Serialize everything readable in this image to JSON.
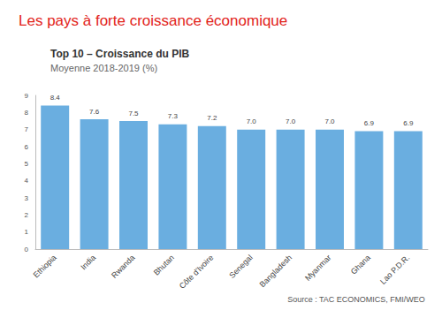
{
  "slide_title": "Les pays à forte croissance économique",
  "chart_data": {
    "type": "bar",
    "title": "Top 10 – Croissance du PIB",
    "subtitle": "Moyenne 2018-2019 (%)",
    "categories": [
      "Ethiopia",
      "India",
      "Rwanda",
      "Bhutan",
      "Côte d'Ivoire",
      "Senegal",
      "Bangladesh",
      "Myanmar",
      "Ghana",
      "Lao P.D.R."
    ],
    "values": [
      8.4,
      7.6,
      7.5,
      7.3,
      7.2,
      7.0,
      7.0,
      7.0,
      6.9,
      6.9
    ],
    "value_labels": [
      "8.4",
      "7.6",
      "7.5",
      "7.3",
      "7.2",
      "7.0",
      "7.0",
      "7.0",
      "6.9",
      "6.9"
    ],
    "data_labels": true,
    "color": "#6aaee0",
    "ylim": [
      0,
      9
    ],
    "yticks": [
      0,
      1,
      2,
      3,
      4,
      5,
      6,
      7,
      8,
      9
    ],
    "grid": false,
    "source": "Source : TAC ECONOMICS, FMI/WEO"
  }
}
